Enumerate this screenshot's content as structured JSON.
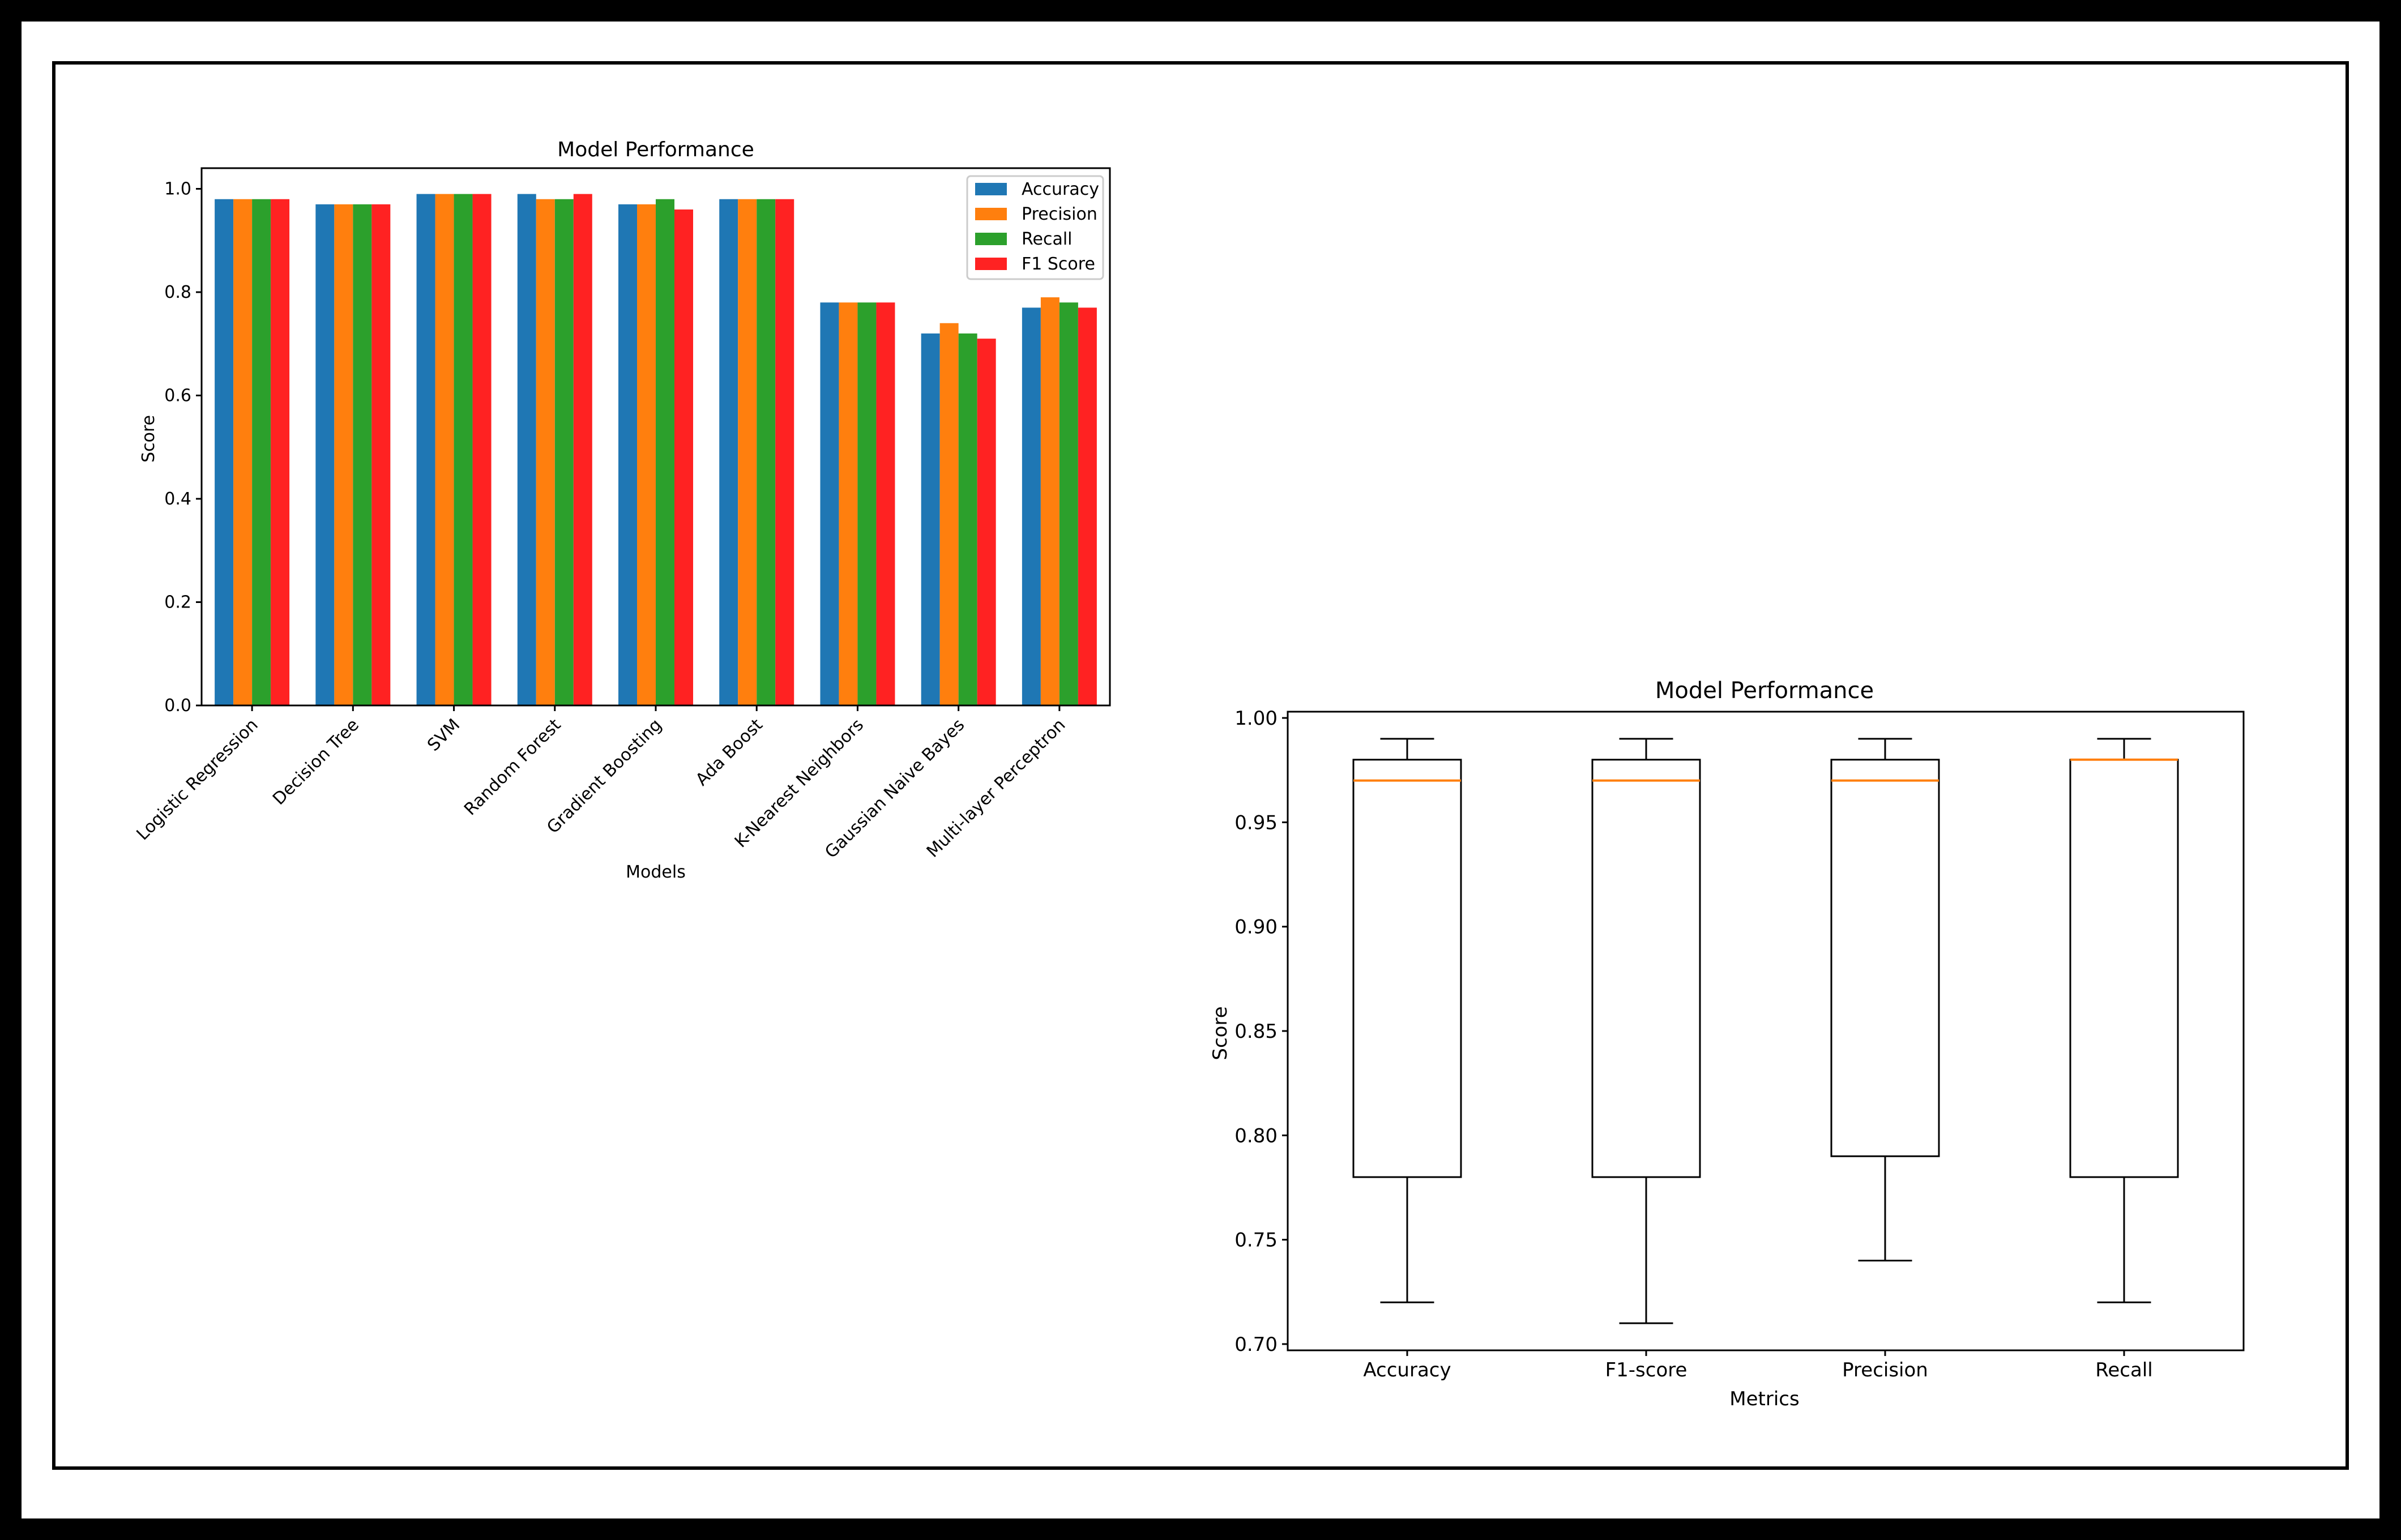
{
  "chart_data": [
    {
      "type": "bar",
      "title": "Model Performance",
      "xlabel": "Models",
      "ylabel": "Score",
      "ylim": [
        0,
        1.04
      ],
      "yticks": [
        "0.0",
        "0.2",
        "0.4",
        "0.6",
        "0.8",
        "1.0"
      ],
      "categories": [
        "Logistic Regression",
        "Decision Tree",
        "SVM",
        "Random Forest",
        "Gradient Boosting",
        "Ada Boost",
        "K-Nearest Neighbors",
        "Gaussian Naive Bayes",
        "Multi-layer Perceptron"
      ],
      "series": [
        {
          "name": "Accuracy",
          "color": "#1f77b4",
          "values": [
            0.98,
            0.97,
            0.99,
            0.99,
            0.97,
            0.98,
            0.78,
            0.72,
            0.77
          ]
        },
        {
          "name": "Precision",
          "color": "#ff7f0e",
          "values": [
            0.98,
            0.97,
            0.99,
            0.98,
            0.97,
            0.98,
            0.78,
            0.74,
            0.79
          ]
        },
        {
          "name": "Recall",
          "color": "#2ca02c",
          "values": [
            0.98,
            0.97,
            0.99,
            0.98,
            0.98,
            0.98,
            0.78,
            0.72,
            0.78
          ]
        },
        {
          "name": "F1 Score",
          "color": "#ff2222",
          "values": [
            0.98,
            0.97,
            0.99,
            0.99,
            0.96,
            0.98,
            0.78,
            0.71,
            0.77
          ]
        }
      ],
      "legend": "top-right"
    },
    {
      "type": "box",
      "title": "Model Performance",
      "xlabel": "Metrics",
      "ylabel": "Score",
      "ylim": [
        0.697,
        1.003
      ],
      "yticks": [
        "0.70",
        "0.75",
        "0.80",
        "0.85",
        "0.90",
        "0.95",
        "1.00"
      ],
      "categories": [
        "Accuracy",
        "F1-score",
        "Precision",
        "Recall"
      ],
      "boxes": [
        {
          "min": 0.72,
          "q1": 0.78,
          "median": 0.97,
          "q3": 0.98,
          "max": 0.99
        },
        {
          "min": 0.71,
          "q1": 0.78,
          "median": 0.97,
          "q3": 0.98,
          "max": 0.99
        },
        {
          "min": 0.74,
          "q1": 0.79,
          "median": 0.97,
          "q3": 0.98,
          "max": 0.99
        },
        {
          "min": 0.72,
          "q1": 0.78,
          "median": 0.98,
          "q3": 0.98,
          "max": 0.99
        }
      ],
      "median_color": "#ff7f0e"
    }
  ]
}
